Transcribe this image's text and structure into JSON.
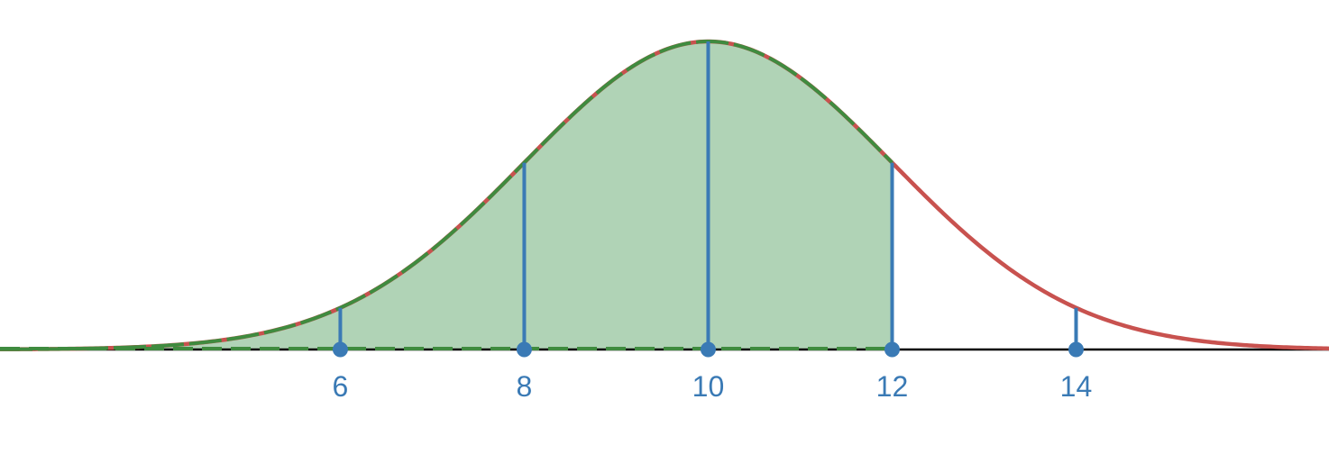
{
  "chart_data": {
    "type": "area",
    "distribution": "normal",
    "mean": 10,
    "sd": 2,
    "xlim": [
      2.3,
      16.75
    ],
    "x_ticks": [
      6,
      8,
      10,
      12,
      14
    ],
    "tick_labels": [
      "6",
      "8",
      "10",
      "12",
      "14"
    ],
    "shaded_interval": [
      2.3,
      12
    ],
    "grid": false,
    "legend": "none",
    "colors": {
      "curve": "#c8524f",
      "fill": "#b0d3b6",
      "fill_outline": "#3f8b3f",
      "markers": "#3a7ab5",
      "axis": "#000000"
    }
  }
}
